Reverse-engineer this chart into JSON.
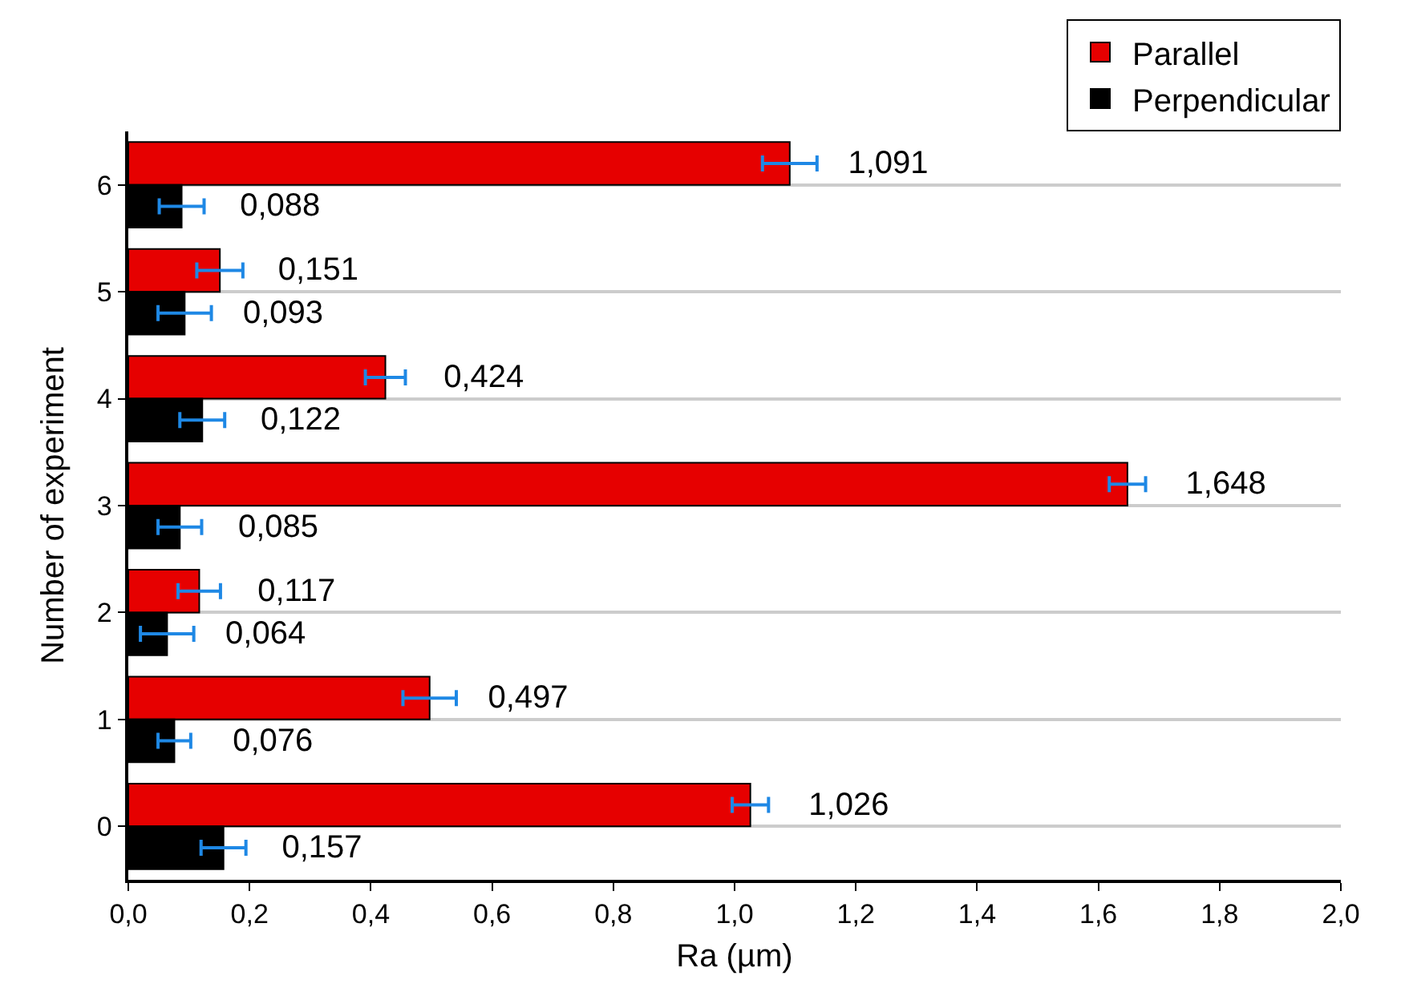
{
  "chart_data": {
    "type": "bar",
    "orientation": "horizontal",
    "xlabel": "Ra (µm)",
    "ylabel": "Number of experiment",
    "categories": [
      "6",
      "5",
      "4",
      "3",
      "2",
      "1",
      "0"
    ],
    "series": [
      {
        "name": "Parallel",
        "color": "#e60000",
        "values": [
          1.091,
          0.151,
          0.424,
          1.648,
          0.117,
          0.497,
          1.026
        ],
        "errors": [
          0.045,
          0.038,
          0.033,
          0.03,
          0.035,
          0.044,
          0.03
        ],
        "value_labels": [
          "1,091",
          "0,151",
          "0,424",
          "1,648",
          "0,117",
          "0,497",
          "1,026"
        ]
      },
      {
        "name": "Perpendicular",
        "color": "#000000",
        "values": [
          0.088,
          0.093,
          0.122,
          0.085,
          0.064,
          0.076,
          0.157
        ],
        "errors": [
          0.037,
          0.044,
          0.037,
          0.036,
          0.044,
          0.027,
          0.037
        ],
        "value_labels": [
          "0,088",
          "0,093",
          "0,122",
          "0,085",
          "0,064",
          "0,076",
          "0,157"
        ]
      }
    ],
    "xlim": [
      0,
      2.0
    ],
    "xticks": [
      {
        "value": 0,
        "label": "0,0"
      },
      {
        "value": 0.2,
        "label": "0,2"
      },
      {
        "value": 0.4,
        "label": "0,4"
      },
      {
        "value": 0.6,
        "label": "0,6"
      },
      {
        "value": 0.8,
        "label": "0,8"
      },
      {
        "value": 1.0,
        "label": "1,0"
      },
      {
        "value": 1.2,
        "label": "1,2"
      },
      {
        "value": 1.4,
        "label": "1,4"
      },
      {
        "value": 1.6,
        "label": "1,6"
      },
      {
        "value": 1.8,
        "label": "1,8"
      },
      {
        "value": 2.0,
        "label": "2,0"
      }
    ],
    "grid": "y",
    "legend": "top right"
  }
}
